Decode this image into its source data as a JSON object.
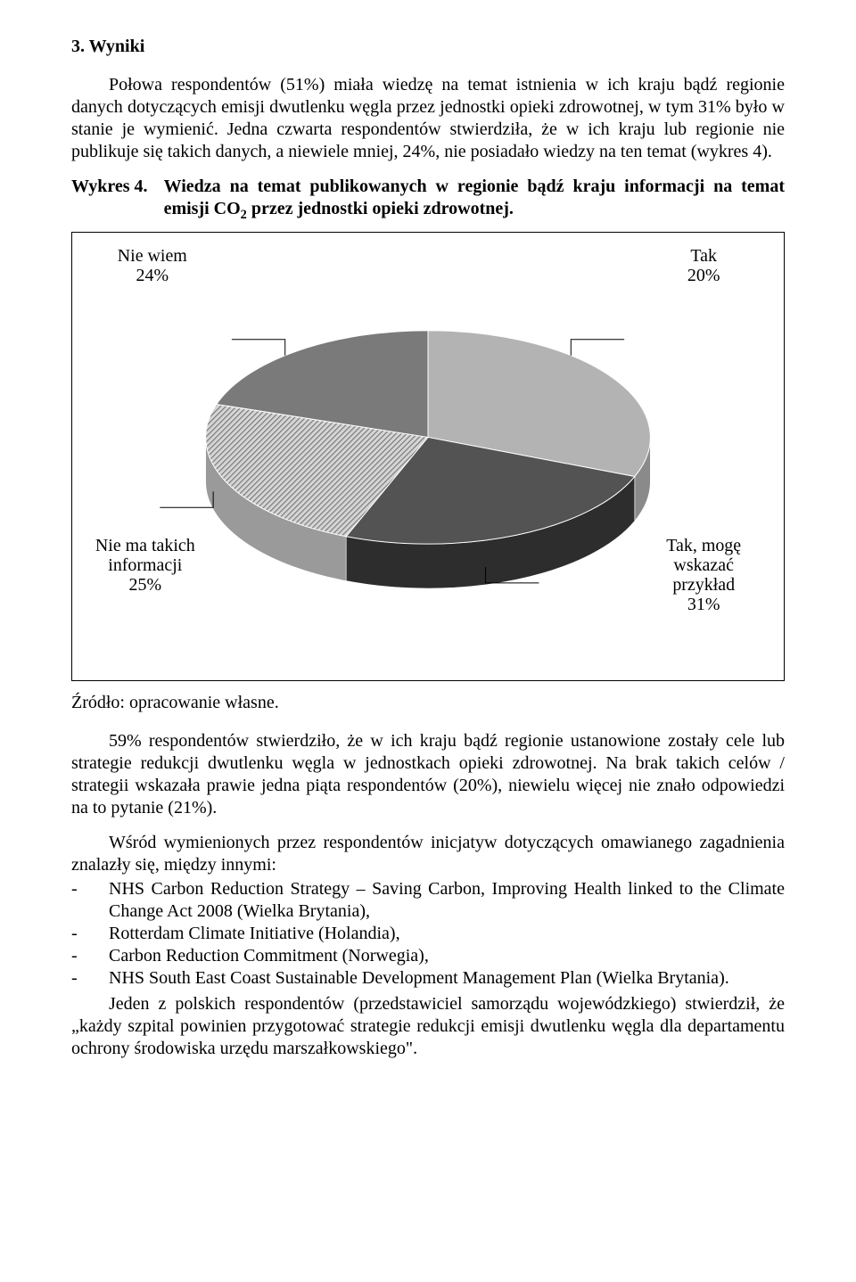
{
  "section_heading": "3.  Wyniki",
  "para1": "Połowa respondentów (51%) miała wiedzę na temat istnienia w ich kraju bądź regionie danych dotyczących emisji dwutlenku węgla przez jednostki opieki zdrowotnej, w tym 31% było w stanie je wymienić. Jedna czwarta respondentów stwierdziła, że w ich kraju lub regionie nie publikuje się takich danych, a niewiele mniej, 24%, nie posiadało wiedzy na ten temat (wykres 4).",
  "wykres_label": "Wykres 4.",
  "wykres_title_pre": "Wiedza na temat publikowanych w regionie bądź kraju informacji na temat emisji CO",
  "wykres_title_post": " przez jednostki opieki zdrowotnej.",
  "source": "Źródło: opracowanie własne.",
  "para2": "59% respondentów stwierdziło, że w ich kraju bądź regionie ustanowione zostały cele lub strategie redukcji dwutlenku węgla w jednostkach opieki zdrowotnej. Na brak takich celów / strategii wskazała prawie jedna piąta respondentów (20%), niewielu więcej nie znało odpowiedzi na to pytanie (21%).",
  "para3": "Wśród wymienionych przez respondentów inicjatyw dotyczących omawianego zagadnienia znalazły się, między innymi:",
  "bullets": [
    "NHS Carbon Reduction Strategy – Saving Carbon, Improving Health linked to the Climate Change Act 2008 (Wielka Brytania),",
    "Rotterdam Climate Initiative (Holandia),",
    "Carbon Reduction Commitment (Norwegia),",
    "NHS South East Coast Sustainable Development Management Plan (Wielka Brytania)."
  ],
  "para4": "Jeden z polskich respondentów (przedstawiciel samorządu wojewódzkiego) stwierdził, że „każdy szpital powinien przygotować strategie redukcji emisji dwutlenku węgla dla departamentu ochrony środowiska urzędu marszałkowskiego\".",
  "chart": {
    "type": "pie3d",
    "background_color": "#ffffff",
    "frame_border_color": "#000000",
    "leader_color": "#000000",
    "label_fontsize": 20,
    "slices": [
      {
        "key": "tak_przyklad",
        "label_lines": [
          "Tak, mogę",
          "wskazać",
          "przykład",
          "31%"
        ],
        "value": 31,
        "fill": "#b3b3b3",
        "pattern": null,
        "side_fill": "#8a8a8a"
      },
      {
        "key": "nie_ma",
        "label_lines": [
          "Nie ma takich",
          "informacji",
          "25%"
        ],
        "value": 25,
        "fill": "#535353",
        "pattern": null,
        "side_fill": "#2d2d2d"
      },
      {
        "key": "nie_wiem",
        "label_lines": [
          "Nie wiem",
          "24%"
        ],
        "value": 24,
        "fill": "#cfcfcf",
        "pattern": "hatch",
        "side_fill": "#9a9a9a"
      },
      {
        "key": "tak",
        "label_lines": [
          "Tak",
          "20%"
        ],
        "value": 20,
        "fill": "#7a7a7a",
        "pattern": null,
        "side_fill": "#5a5a5a"
      }
    ]
  }
}
